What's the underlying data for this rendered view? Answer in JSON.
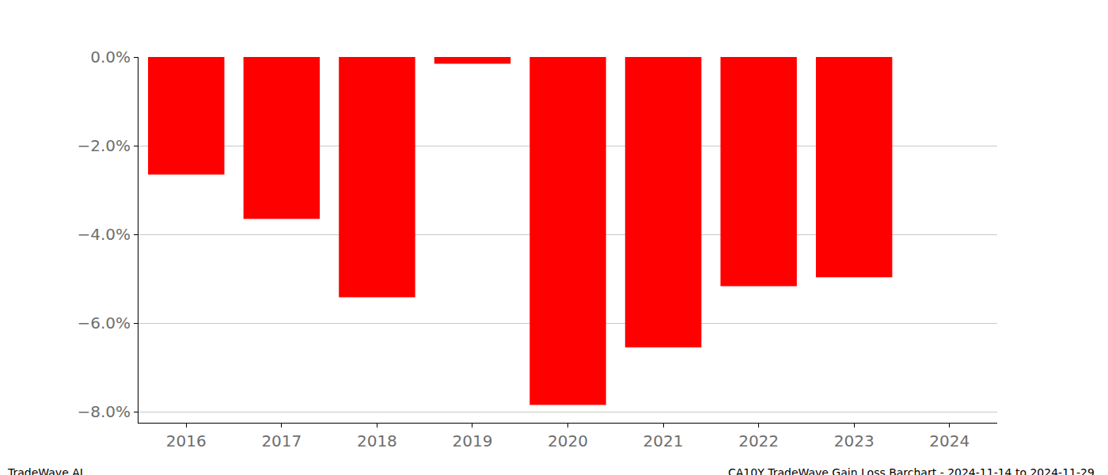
{
  "chart_data": {
    "type": "bar",
    "categories": [
      "2016",
      "2017",
      "2018",
      "2019",
      "2020",
      "2021",
      "2022",
      "2023",
      "2024"
    ],
    "values": [
      -2.65,
      -3.65,
      -5.42,
      -0.15,
      -7.85,
      -6.55,
      -5.17,
      -4.97,
      null
    ],
    "color": "#ff0000",
    "ylim": [
      -8.25,
      0
    ],
    "yticks": [
      {
        "value": 0,
        "label": "0.0%"
      },
      {
        "value": -2,
        "label": "−2.0%"
      },
      {
        "value": -4,
        "label": "−4.0%"
      },
      {
        "value": -6,
        "label": "−6.0%"
      },
      {
        "value": -8,
        "label": "−8.0%"
      }
    ],
    "grid": true,
    "annotations": [
      "TradeWave.AI",
      "CA10Y TradeWave Gain Loss Barchart - 2024-11-14 to 2024-11-29"
    ]
  }
}
